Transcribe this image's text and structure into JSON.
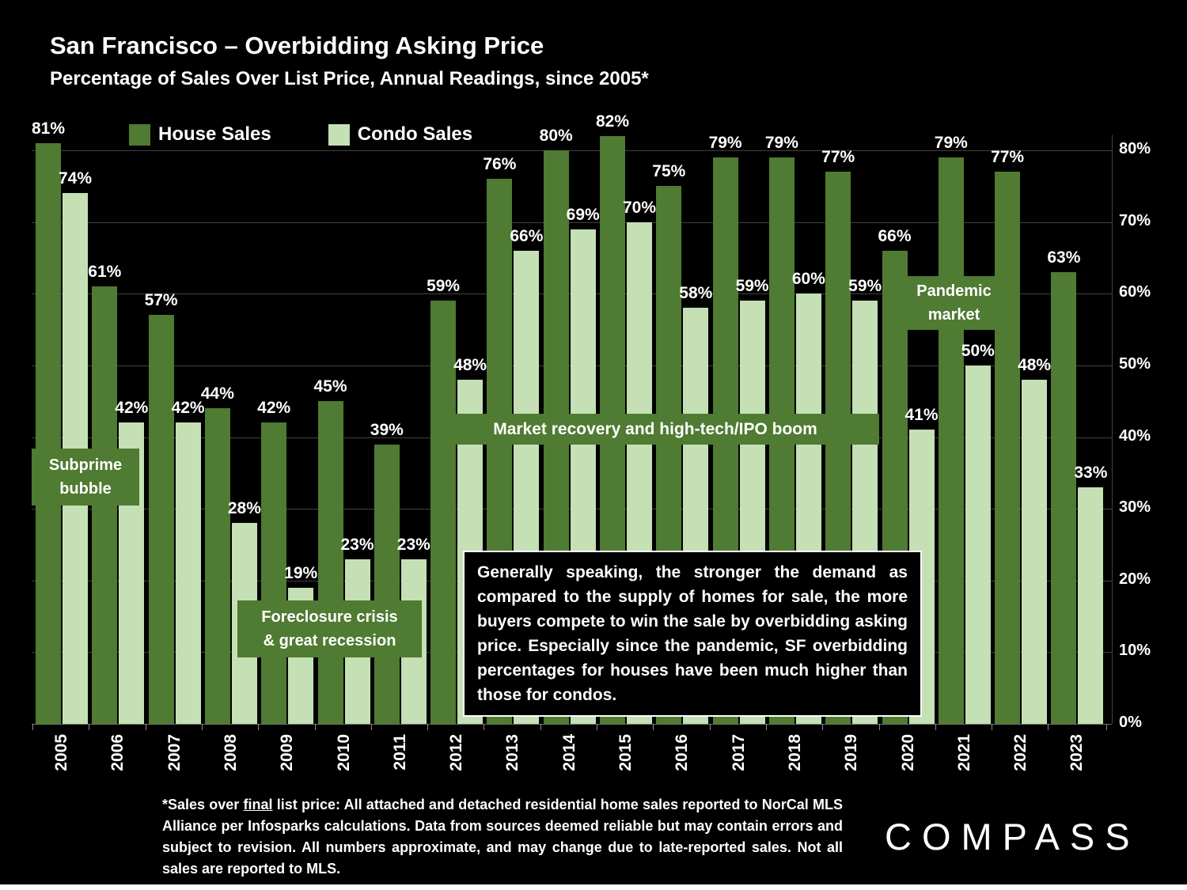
{
  "header": {
    "title": "San Francisco – Overbidding Asking Price",
    "subtitle": "Percentage of Sales Over List Price, Annual Readings, since 2005*"
  },
  "colors": {
    "house": "#4f7b32",
    "condo": "#c5e0b4",
    "background": "#000000",
    "grid": "#404040",
    "text": "#ffffff"
  },
  "chart_data": {
    "type": "bar",
    "title": "San Francisco – Overbidding Asking Price",
    "subtitle": "Percentage of Sales Over List Price, Annual Readings, since 2005*",
    "categories": [
      "2005",
      "2006",
      "2007",
      "2008",
      "2009",
      "2010",
      "2011",
      "2012",
      "2013",
      "2014",
      "2015",
      "2016",
      "2017",
      "2018",
      "2019",
      "2020",
      "2021",
      "2022",
      "2023"
    ],
    "series": [
      {
        "name": "House Sales",
        "color": "#4f7b32",
        "values": [
          81,
          61,
          57,
          44,
          42,
          45,
          39,
          59,
          76,
          80,
          82,
          75,
          79,
          79,
          77,
          66,
          79,
          77,
          63
        ]
      },
      {
        "name": "Condo Sales",
        "color": "#c5e0b4",
        "values": [
          74,
          42,
          42,
          28,
          19,
          23,
          23,
          48,
          66,
          69,
          70,
          58,
          59,
          60,
          59,
          41,
          50,
          48,
          33
        ]
      }
    ],
    "unit": "%",
    "ylim": [
      0,
      85
    ],
    "yticks": [
      0,
      10,
      20,
      30,
      40,
      50,
      60,
      70,
      80
    ],
    "grid": true,
    "legend_position": "top-left",
    "value_labels": true
  },
  "annotations": {
    "subprime": {
      "line1": "Subprime",
      "line2": "bubble"
    },
    "foreclosure": {
      "line1": "Foreclosure crisis",
      "line2": "& great recession"
    },
    "recovery": {
      "text": "Market recovery and high-tech/IPO boom"
    },
    "pandemic": {
      "line1": "Pandemic",
      "line2": "market"
    },
    "commentary": "Generally speaking, the stronger the demand as compared to the supply of homes for sale, the more buyers compete to win the sale by overbidding asking price. Especially since the pandemic, SF overbidding percentages for houses have been much higher than those for condos."
  },
  "footnote": {
    "part1": "*Sales over ",
    "underlined": "final",
    "part2": " list price: All attached and detached residential home sales reported to NorCal MLS Alliance per Infosparks calculations. Data from sources deemed reliable but may contain errors and subject to revision. All numbers approximate, and may change due to late-reported sales. Not all sales are reported to MLS."
  },
  "logo": {
    "text": "COMPASS"
  }
}
